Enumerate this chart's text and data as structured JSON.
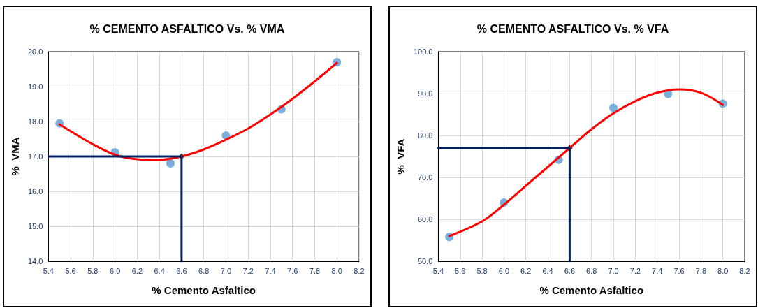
{
  "chart_data": [
    {
      "type": "scatter",
      "title": "% CEMENTO ASFALTICO Vs. % VMA",
      "xlabel": "% Cemento Asfaltico",
      "ylabel": "%  VMA",
      "grid": true,
      "xlim": [
        5.4,
        8.2
      ],
      "xticks": [
        5.4,
        5.6,
        5.8,
        {
          "value": 6,
          "label": "6.0"
        },
        6.2,
        6.4,
        6.6,
        6.8,
        {
          "value": 7,
          "label": "7.0"
        },
        7.2,
        7.4,
        7.6,
        7.8,
        {
          "value": 8,
          "label": "8.0"
        },
        8.2
      ],
      "ylim": [
        14,
        20
      ],
      "yticks": [
        {
          "value": 14,
          "label": "14.0"
        },
        {
          "value": 15,
          "label": "15.0"
        },
        {
          "value": 16,
          "label": "16.0"
        },
        {
          "value": 17,
          "label": "17.0"
        },
        {
          "value": 18,
          "label": "18.0"
        },
        {
          "value": 19,
          "label": "19.0"
        },
        {
          "value": 20,
          "label": "20.0"
        }
      ],
      "series": [
        {
          "color": "#5b9bd5",
          "marker": "circle",
          "x": [
            5.5,
            6.0,
            6.5,
            7.0,
            7.5,
            8.0
          ],
          "values": [
            17.95,
            17.12,
            16.8,
            17.6,
            18.35,
            19.7
          ]
        },
        {
          "type": "line",
          "color": "#ff0000",
          "marker": "none",
          "x": [
            5.5,
            5.8,
            6.0,
            6.2,
            6.4,
            6.6,
            6.8,
            7.0,
            7.2,
            7.4,
            7.6,
            7.8,
            8.0
          ],
          "values": [
            17.92,
            17.35,
            17.05,
            16.92,
            16.9,
            17.0,
            17.2,
            17.48,
            17.8,
            18.2,
            18.65,
            19.15,
            19.68
          ]
        },
        {
          "type": "line",
          "color": "#002060",
          "marker": "none",
          "x": [
            5.4,
            6.6,
            6.6
          ],
          "values": [
            17.0,
            17.0,
            14.0
          ]
        },
        {
          "color": "#000000",
          "marker": "diamond",
          "x": [
            6.6
          ],
          "values": [
            17.0
          ]
        }
      ]
    },
    {
      "type": "scatter",
      "title": "% CEMENTO ASFALTICO Vs. % VFA",
      "xlabel": "% Cemento Asfaltico",
      "ylabel": "%  VFA",
      "grid": true,
      "xlim": [
        5.4,
        8.2
      ],
      "xticks": [
        5.4,
        5.6,
        5.8,
        {
          "value": 6,
          "label": "6.0"
        },
        6.2,
        6.4,
        6.6,
        6.8,
        {
          "value": 7,
          "label": "7.0"
        },
        7.2,
        7.4,
        7.6,
        7.8,
        {
          "value": 8,
          "label": "8.0"
        },
        8.2
      ],
      "ylim": [
        50,
        100
      ],
      "yticks": [
        {
          "value": 50,
          "label": "50.0"
        },
        {
          "value": 60,
          "label": "60.0"
        },
        {
          "value": 70,
          "label": "70.0"
        },
        {
          "value": 80,
          "label": "80.0"
        },
        {
          "value": 90,
          "label": "90.0"
        },
        {
          "value": 100,
          "label": "100.0"
        }
      ],
      "series": [
        {
          "color": "#5b9bd5",
          "marker": "circle",
          "x": [
            5.5,
            6.0,
            6.5,
            7.0,
            7.5,
            8.0
          ],
          "values": [
            55.8,
            64.0,
            74.2,
            86.6,
            89.9,
            87.6
          ]
        },
        {
          "type": "line",
          "color": "#ff0000",
          "marker": "none",
          "x": [
            5.5,
            5.8,
            6.0,
            6.2,
            6.4,
            6.6,
            6.8,
            7.0,
            7.2,
            7.4,
            7.6,
            7.8,
            8.0
          ],
          "values": [
            56.0,
            59.5,
            63.5,
            68.0,
            72.5,
            77.0,
            81.5,
            85.3,
            88.2,
            90.2,
            91.0,
            90.2,
            87.3
          ]
        },
        {
          "type": "line",
          "color": "#002060",
          "marker": "none",
          "x": [
            5.4,
            6.6,
            6.6
          ],
          "values": [
            77.0,
            77.0,
            50.0
          ]
        },
        {
          "color": "#000000",
          "marker": "diamond",
          "x": [
            6.6
          ],
          "values": [
            77.0
          ]
        }
      ]
    }
  ]
}
